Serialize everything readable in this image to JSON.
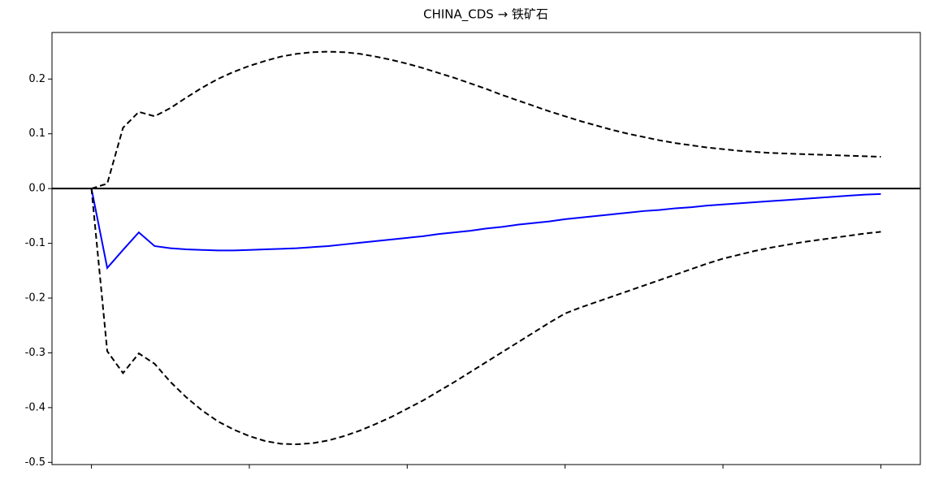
{
  "chart_data": {
    "type": "line",
    "title": "CHINA_CDS → 铁矿石",
    "x": [
      0,
      1,
      2,
      3,
      4,
      5,
      6,
      7,
      8,
      9,
      10,
      11,
      12,
      13,
      14,
      15,
      16,
      17,
      18,
      19,
      20,
      21,
      22,
      23,
      24,
      25,
      26,
      27,
      28,
      29,
      30,
      31,
      32,
      33,
      34,
      35,
      36,
      37,
      38,
      39,
      40,
      41,
      42,
      43,
      44,
      45,
      46,
      47,
      48,
      49,
      50
    ],
    "series": [
      {
        "color": "#0000ff",
        "dashed": false,
        "values": [
          0,
          -0.145,
          -0.112,
          -0.08,
          -0.105,
          -0.109,
          -0.111,
          -0.112,
          -0.113,
          -0.113,
          -0.112,
          -0.111,
          -0.11,
          -0.109,
          -0.107,
          -0.105,
          -0.102,
          -0.099,
          -0.096,
          -0.093,
          -0.09,
          -0.087,
          -0.083,
          -0.08,
          -0.077,
          -0.073,
          -0.07,
          -0.066,
          -0.063,
          -0.06,
          -0.056,
          -0.053,
          -0.05,
          -0.047,
          -0.044,
          -0.041,
          -0.039,
          -0.036,
          -0.034,
          -0.031,
          -0.029,
          -0.027,
          -0.025,
          -0.023,
          -0.021,
          -0.019,
          -0.017,
          -0.015,
          -0.013,
          -0.011,
          -0.01
        ]
      },
      {
        "color": "#000000",
        "dashed": true,
        "values": [
          0,
          0.009,
          0.111,
          0.14,
          0.132,
          0.147,
          0.166,
          0.184,
          0.2,
          0.213,
          0.224,
          0.233,
          0.241,
          0.246,
          0.249,
          0.25,
          0.249,
          0.246,
          0.241,
          0.235,
          0.228,
          0.22,
          0.211,
          0.202,
          0.192,
          0.182,
          0.171,
          0.161,
          0.151,
          0.141,
          0.132,
          0.123,
          0.115,
          0.107,
          0.1,
          0.094,
          0.088,
          0.083,
          0.079,
          0.075,
          0.072,
          0.069,
          0.067,
          0.065,
          0.064,
          0.063,
          0.062,
          0.061,
          0.06,
          0.059,
          0.058
        ]
      },
      {
        "color": "#000000",
        "dashed": true,
        "values": [
          0,
          -0.297,
          -0.337,
          -0.301,
          -0.32,
          -0.353,
          -0.381,
          -0.405,
          -0.425,
          -0.44,
          -0.452,
          -0.461,
          -0.466,
          -0.467,
          -0.465,
          -0.46,
          -0.452,
          -0.442,
          -0.43,
          -0.417,
          -0.402,
          -0.387,
          -0.37,
          -0.353,
          -0.335,
          -0.317,
          -0.299,
          -0.281,
          -0.263,
          -0.245,
          -0.228,
          -0.217,
          -0.207,
          -0.197,
          -0.187,
          -0.177,
          -0.167,
          -0.157,
          -0.147,
          -0.137,
          -0.128,
          -0.121,
          -0.114,
          -0.108,
          -0.103,
          -0.098,
          -0.094,
          -0.09,
          -0.086,
          -0.082,
          -0.079
        ]
      }
    ],
    "hline": 0,
    "xlim": [
      -2.5,
      52.5
    ],
    "ylim": [
      -0.504,
      0.285
    ],
    "xticks": [
      {
        "value": 0,
        "label": null
      },
      {
        "value": 10,
        "label": null
      },
      {
        "value": 20,
        "label": null
      },
      {
        "value": 30,
        "label": null
      },
      {
        "value": 40,
        "label": null
      },
      {
        "value": 50,
        "label": null
      }
    ],
    "yticks": [
      0.2,
      0.1,
      0.0,
      -0.1,
      -0.2,
      -0.3,
      -0.4,
      -0.5
    ],
    "grid": false
  }
}
